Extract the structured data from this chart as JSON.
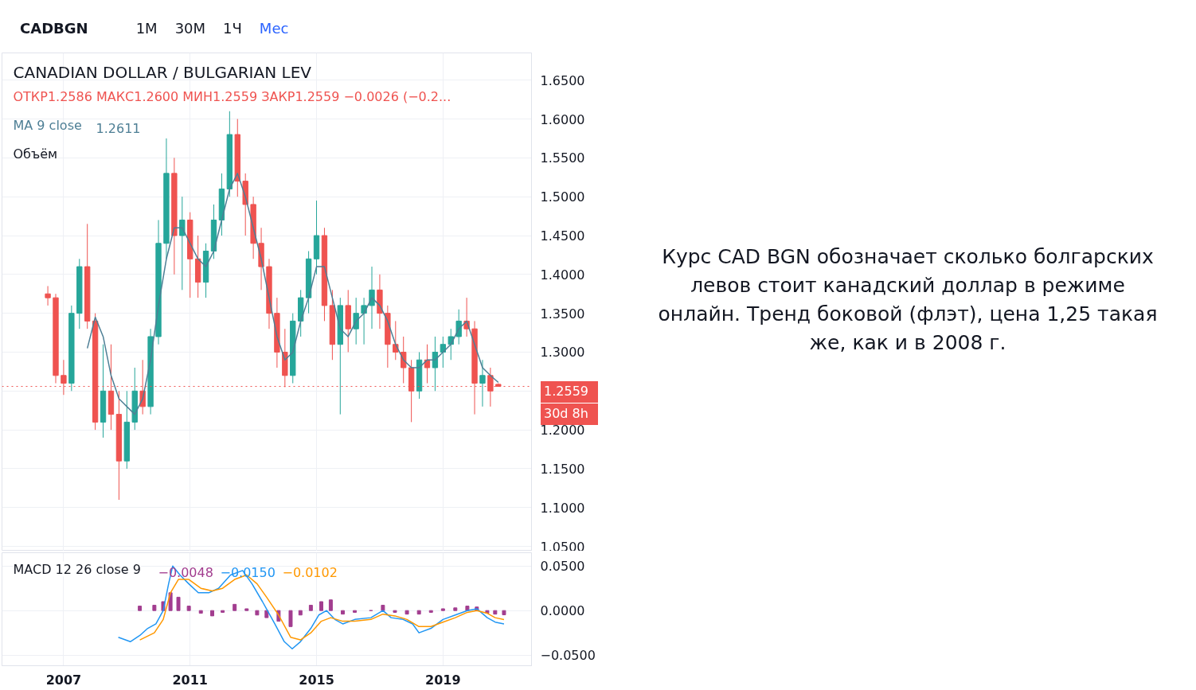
{
  "chart_data": [
    {
      "type": "candlestick",
      "title": "CANADIAN DOLLAR / BULGARIAN LEV",
      "annotations": [
        "CADBGN",
        "1M",
        "30M",
        "1Ч",
        "Мес",
        "ОТКР1.2586 МАКС1.2600 МИН1.2559 ЗАКР1.2559 −0.0026 (−0.2...",
        "1.2611",
        "Объём",
        "30d 8h",
        "Курс CAD BGN обозначает сколько болгарских левов стоит канадский доллар в режиме онлайн. Тренд боковой (флэт), цена 1,25 такая же, как и в 2008 г."
      ],
      "x": [
        2006.5,
        2006.75,
        2007.0,
        2007.25,
        2007.5,
        2007.75,
        2008.0,
        2008.25,
        2008.5,
        2008.75,
        2009.0,
        2009.25,
        2009.5,
        2009.75,
        2010.0,
        2010.25,
        2010.5,
        2010.75,
        2011.0,
        2011.25,
        2011.5,
        2011.75,
        2012.0,
        2012.25,
        2012.5,
        2012.75,
        2013.0,
        2013.25,
        2013.5,
        2013.75,
        2014.0,
        2014.25,
        2014.5,
        2014.75,
        2015.0,
        2015.25,
        2015.5,
        2015.75,
        2016.0,
        2016.25,
        2016.5,
        2016.75,
        2017.0,
        2017.25,
        2017.5,
        2017.75,
        2018.0,
        2018.25,
        2018.5,
        2018.75,
        2019.0,
        2019.25,
        2019.5,
        2019.75,
        2020.0,
        2020.25,
        2020.5,
        2020.75
      ],
      "ohlc": [
        [
          1.375,
          1.385,
          1.36,
          1.37
        ],
        [
          1.37,
          1.375,
          1.26,
          1.27
        ],
        [
          1.27,
          1.29,
          1.245,
          1.26
        ],
        [
          1.26,
          1.36,
          1.25,
          1.35
        ],
        [
          1.35,
          1.42,
          1.33,
          1.41
        ],
        [
          1.41,
          1.465,
          1.33,
          1.34
        ],
        [
          1.34,
          1.35,
          1.2,
          1.21
        ],
        [
          1.21,
          1.31,
          1.19,
          1.25
        ],
        [
          1.25,
          1.31,
          1.2,
          1.22
        ],
        [
          1.22,
          1.25,
          1.11,
          1.16
        ],
        [
          1.16,
          1.25,
          1.15,
          1.21
        ],
        [
          1.21,
          1.28,
          1.2,
          1.25
        ],
        [
          1.25,
          1.29,
          1.22,
          1.23
        ],
        [
          1.23,
          1.33,
          1.22,
          1.32
        ],
        [
          1.32,
          1.47,
          1.31,
          1.44
        ],
        [
          1.44,
          1.575,
          1.42,
          1.53
        ],
        [
          1.53,
          1.55,
          1.4,
          1.45
        ],
        [
          1.45,
          1.5,
          1.38,
          1.47
        ],
        [
          1.47,
          1.48,
          1.37,
          1.42
        ],
        [
          1.42,
          1.45,
          1.37,
          1.39
        ],
        [
          1.39,
          1.44,
          1.37,
          1.43
        ],
        [
          1.43,
          1.49,
          1.42,
          1.47
        ],
        [
          1.47,
          1.53,
          1.45,
          1.51
        ],
        [
          1.51,
          1.61,
          1.5,
          1.58
        ],
        [
          1.58,
          1.6,
          1.5,
          1.52
        ],
        [
          1.52,
          1.53,
          1.45,
          1.49
        ],
        [
          1.49,
          1.5,
          1.42,
          1.44
        ],
        [
          1.44,
          1.46,
          1.38,
          1.41
        ],
        [
          1.41,
          1.42,
          1.33,
          1.35
        ],
        [
          1.35,
          1.37,
          1.28,
          1.3
        ],
        [
          1.3,
          1.33,
          1.255,
          1.27
        ],
        [
          1.27,
          1.35,
          1.26,
          1.34
        ],
        [
          1.34,
          1.38,
          1.32,
          1.37
        ],
        [
          1.37,
          1.43,
          1.35,
          1.42
        ],
        [
          1.42,
          1.495,
          1.4,
          1.45
        ],
        [
          1.45,
          1.46,
          1.34,
          1.36
        ],
        [
          1.36,
          1.38,
          1.29,
          1.31
        ],
        [
          1.31,
          1.37,
          1.22,
          1.36
        ],
        [
          1.36,
          1.38,
          1.3,
          1.33
        ],
        [
          1.33,
          1.37,
          1.31,
          1.35
        ],
        [
          1.35,
          1.37,
          1.31,
          1.36
        ],
        [
          1.36,
          1.41,
          1.33,
          1.38
        ],
        [
          1.38,
          1.4,
          1.33,
          1.35
        ],
        [
          1.35,
          1.36,
          1.28,
          1.31
        ],
        [
          1.31,
          1.34,
          1.29,
          1.3
        ],
        [
          1.3,
          1.32,
          1.26,
          1.28
        ],
        [
          1.28,
          1.29,
          1.21,
          1.25
        ],
        [
          1.25,
          1.3,
          1.24,
          1.29
        ],
        [
          1.29,
          1.31,
          1.26,
          1.28
        ],
        [
          1.28,
          1.32,
          1.25,
          1.3
        ],
        [
          1.3,
          1.32,
          1.28,
          1.31
        ],
        [
          1.31,
          1.33,
          1.29,
          1.32
        ],
        [
          1.32,
          1.355,
          1.31,
          1.34
        ],
        [
          1.34,
          1.37,
          1.32,
          1.33
        ],
        [
          1.33,
          1.34,
          1.22,
          1.26
        ],
        [
          1.26,
          1.29,
          1.23,
          1.27
        ],
        [
          1.27,
          1.28,
          1.23,
          1.25
        ],
        [
          1.2586,
          1.26,
          1.2559,
          1.2559
        ]
      ],
      "colors": [
        "#ef5350",
        "#ef5350",
        "#ef5350",
        "#26a69a",
        "#26a69a",
        "#ef5350",
        "#ef5350",
        "#26a69a",
        "#ef5350",
        "#ef5350",
        "#26a69a",
        "#26a69a",
        "#ef5350",
        "#26a69a",
        "#26a69a",
        "#26a69a",
        "#ef5350",
        "#26a69a",
        "#ef5350",
        "#ef5350",
        "#26a69a",
        "#26a69a",
        "#26a69a",
        "#26a69a",
        "#ef5350",
        "#ef5350",
        "#ef5350",
        "#ef5350",
        "#ef5350",
        "#ef5350",
        "#ef5350",
        "#26a69a",
        "#26a69a",
        "#26a69a",
        "#26a69a",
        "#ef5350",
        "#ef5350",
        "#26a69a",
        "#ef5350",
        "#26a69a",
        "#26a69a",
        "#26a69a",
        "#ef5350",
        "#ef5350",
        "#ef5350",
        "#ef5350",
        "#ef5350",
        "#26a69a",
        "#ef5350",
        "#26a69a",
        "#26a69a",
        "#26a69a",
        "#26a69a",
        "#ef5350",
        "#ef5350",
        "#26a69a",
        "#ef5350",
        "#ef5350"
      ],
      "series": [
        {
          "name": "MA 9 close",
          "type": "line",
          "color": "#4e7f95",
          "x": [
            2007.75,
            2008.0,
            2008.25,
            2008.5,
            2008.75,
            2009.0,
            2009.25,
            2009.5,
            2009.75,
            2010.0,
            2010.25,
            2010.5,
            2010.75,
            2011.0,
            2011.25,
            2011.5,
            2011.75,
            2012.0,
            2012.25,
            2012.5,
            2012.75,
            2013.0,
            2013.25,
            2013.5,
            2013.75,
            2014.0,
            2014.25,
            2014.5,
            2014.75,
            2015.0,
            2015.25,
            2015.5,
            2015.75,
            2016.0,
            2016.25,
            2016.5,
            2016.75,
            2017.0,
            2017.25,
            2017.5,
            2017.75,
            2018.0,
            2018.25,
            2018.5,
            2018.75,
            2019.0,
            2019.25,
            2019.5,
            2019.75,
            2020.0,
            2020.25,
            2020.5,
            2020.75
          ],
          "values": [
            1.305,
            1.345,
            1.32,
            1.27,
            1.24,
            1.23,
            1.22,
            1.24,
            1.29,
            1.36,
            1.42,
            1.46,
            1.46,
            1.44,
            1.42,
            1.41,
            1.43,
            1.47,
            1.51,
            1.53,
            1.5,
            1.46,
            1.42,
            1.37,
            1.32,
            1.29,
            1.3,
            1.34,
            1.37,
            1.41,
            1.41,
            1.37,
            1.33,
            1.32,
            1.34,
            1.35,
            1.37,
            1.36,
            1.34,
            1.31,
            1.29,
            1.28,
            1.28,
            1.29,
            1.29,
            1.3,
            1.31,
            1.33,
            1.34,
            1.31,
            1.28,
            1.27,
            1.2611
          ]
        }
      ],
      "ref_lines": [
        {
          "axis": "y",
          "value": 1.2559,
          "label": "1.2559",
          "color": "#ef5350",
          "line_style": "dotted"
        }
      ],
      "xlim": [
        2005.05,
        2021.8
      ],
      "ylim": [
        1.044,
        1.685
      ],
      "xticks": [
        2007,
        2011,
        2015,
        2019
      ],
      "yticks": [
        {
          "value": 1.05,
          "label": "1.0500"
        },
        {
          "value": 1.1,
          "label": "1.1000"
        },
        {
          "value": 1.15,
          "label": "1.1500"
        },
        {
          "value": 1.2,
          "label": "1.2000"
        },
        {
          "value": 1.25,
          "label": null
        },
        {
          "value": 1.3,
          "label": "1.3000"
        },
        {
          "value": 1.35,
          "label": "1.3500"
        },
        {
          "value": 1.4,
          "label": "1.4000"
        },
        {
          "value": 1.45,
          "label": "1.4500"
        },
        {
          "value": 1.5,
          "label": "1.5000"
        },
        {
          "value": 1.55,
          "label": "1.5500"
        },
        {
          "value": 1.6,
          "label": "1.6000"
        },
        {
          "value": 1.65,
          "label": "1.6500"
        }
      ],
      "tick_labels": "y",
      "grid": true
    },
    {
      "type": "line",
      "title": "MACD 12 26 close 9",
      "annotations": [
        "−0.0048",
        "−0.0150",
        "−0.0102"
      ],
      "series": [
        {
          "type": "bar",
          "color": "#a23d8f",
          "x": [
            2009.41,
            2009.87,
            2010.15,
            2010.38,
            2010.63,
            2010.96,
            2011.34,
            2011.7,
            2012.03,
            2012.41,
            2012.79,
            2013.12,
            2013.42,
            2013.8,
            2014.18,
            2014.49,
            2014.82,
            2015.15,
            2015.45,
            2015.83,
            2016.21,
            2016.72,
            2017.1,
            2017.48,
            2017.86,
            2018.24,
            2018.62,
            2019.0,
            2019.39,
            2019.77,
            2020.07,
            2020.4,
            2020.65,
            2020.93
          ],
          "values": [
            0.005,
            0.006,
            0.01,
            0.02,
            0.015,
            0.005,
            -0.003,
            -0.006,
            -0.002,
            0.007,
            0.002,
            -0.005,
            -0.008,
            -0.012,
            -0.018,
            -0.005,
            0.006,
            0.01,
            0.012,
            -0.004,
            -0.002,
            0.0,
            0.006,
            -0.002,
            -0.004,
            -0.004,
            -0.002,
            0.002,
            0.003,
            0.005,
            0.004,
            -0.003,
            -0.004,
            -0.0048
          ]
        },
        {
          "type": "line",
          "color": "#2196f3",
          "x": [
            2008.73,
            2009.11,
            2009.41,
            2009.66,
            2009.92,
            2010.15,
            2010.32,
            2010.45,
            2010.68,
            2010.96,
            2011.26,
            2011.59,
            2011.9,
            2012.28,
            2012.66,
            2012.96,
            2013.29,
            2013.68,
            2013.98,
            2014.23,
            2014.49,
            2014.82,
            2015.07,
            2015.32,
            2015.58,
            2015.83,
            2016.21,
            2016.72,
            2017.1,
            2017.36,
            2017.74,
            2018.04,
            2018.24,
            2018.62,
            2019.0,
            2019.39,
            2019.77,
            2020.07,
            2020.4,
            2020.65,
            2020.93
          ],
          "values": [
            -0.03,
            -0.035,
            -0.028,
            -0.02,
            -0.015,
            0.0,
            0.03,
            0.05,
            0.04,
            0.03,
            0.02,
            0.02,
            0.025,
            0.04,
            0.045,
            0.03,
            0.01,
            -0.015,
            -0.035,
            -0.043,
            -0.035,
            -0.02,
            -0.005,
            0.0,
            -0.01,
            -0.015,
            -0.01,
            -0.008,
            0.0,
            -0.008,
            -0.01,
            -0.015,
            -0.025,
            -0.02,
            -0.01,
            -0.005,
            0.0,
            0.002,
            -0.008,
            -0.013,
            -0.015
          ]
        },
        {
          "type": "line",
          "color": "#ff9800",
          "x": [
            2009.41,
            2009.87,
            2010.15,
            2010.38,
            2010.63,
            2010.96,
            2011.34,
            2011.7,
            2012.03,
            2012.41,
            2012.79,
            2013.12,
            2013.42,
            2013.8,
            2014.18,
            2014.49,
            2014.82,
            2015.15,
            2015.45,
            2015.83,
            2016.21,
            2016.72,
            2017.1,
            2017.48,
            2017.86,
            2018.24,
            2018.62,
            2019.0,
            2019.39,
            2019.77,
            2020.07,
            2020.4,
            2020.65,
            2020.93
          ],
          "values": [
            -0.033,
            -0.025,
            -0.01,
            0.02,
            0.035,
            0.035,
            0.025,
            0.022,
            0.025,
            0.035,
            0.04,
            0.03,
            0.015,
            -0.005,
            -0.03,
            -0.033,
            -0.025,
            -0.012,
            -0.008,
            -0.012,
            -0.012,
            -0.01,
            -0.004,
            -0.006,
            -0.01,
            -0.018,
            -0.018,
            -0.013,
            -0.008,
            -0.002,
            0.0,
            -0.003,
            -0.008,
            -0.0102
          ]
        }
      ],
      "xlim": [
        2005.05,
        2021.8
      ],
      "ylim": [
        -0.062,
        0.065
      ],
      "xticks": [
        2007,
        2011,
        2015,
        2019
      ],
      "yticks": [
        {
          "value": -0.05,
          "label": "−0.0500"
        },
        {
          "value": 0,
          "label": "0.0000"
        },
        {
          "value": 0.05,
          "label": "0.0500"
        }
      ],
      "grid": true
    }
  ]
}
